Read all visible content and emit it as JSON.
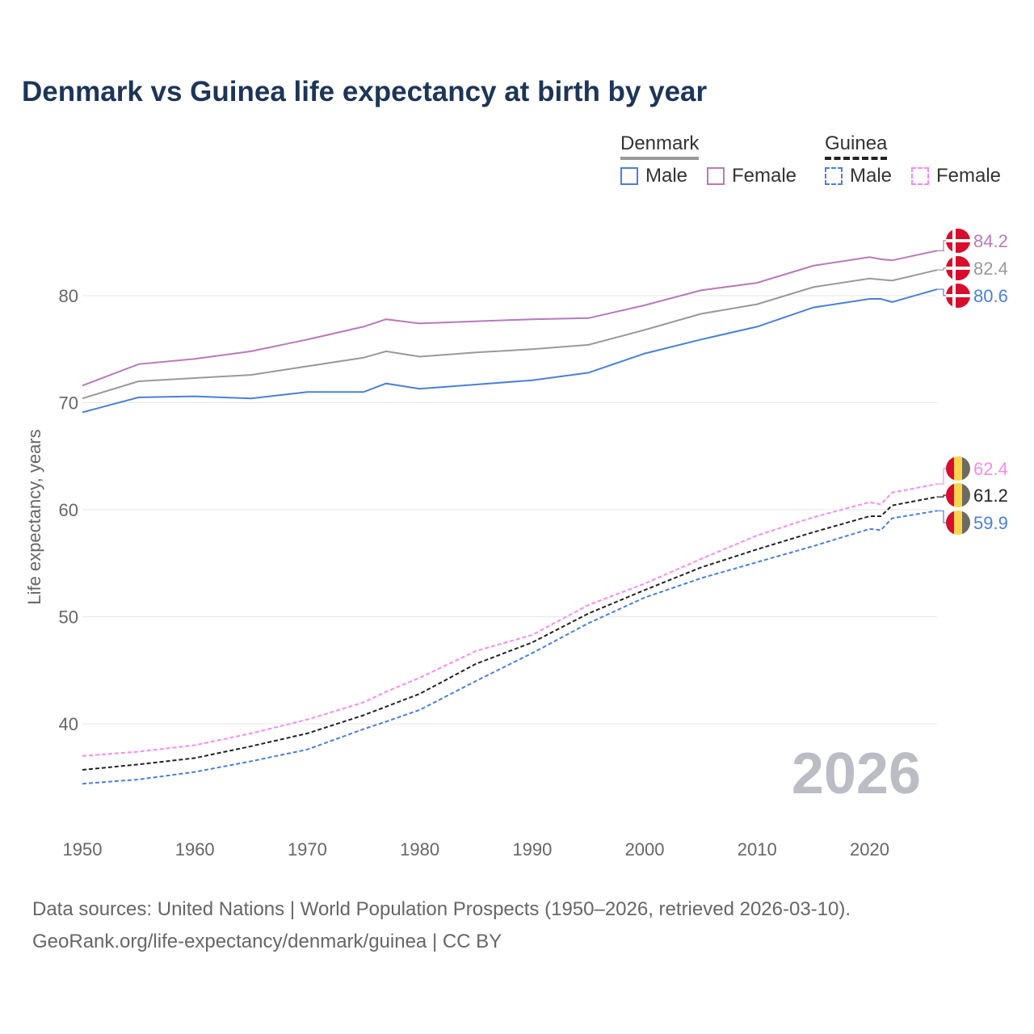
{
  "chart_data": {
    "type": "line",
    "title": "Denmark vs Guinea life expectancy at birth by year",
    "xlabel": "",
    "ylabel": "Life expectancy, years",
    "xlim": [
      1950,
      2026
    ],
    "ylim": [
      31.5,
      87
    ],
    "xticks": [
      "1950",
      "1960",
      "1970",
      "1980",
      "1990",
      "2000",
      "2010",
      "2020"
    ],
    "yticks": [
      "40",
      "50",
      "60",
      "70",
      "80"
    ],
    "grid": true,
    "year_watermark": "2026",
    "x": [
      1950,
      1955,
      1960,
      1965,
      1970,
      1975,
      1977,
      1980,
      1985,
      1990,
      1995,
      2000,
      2005,
      2010,
      2015,
      2020,
      2021,
      2022,
      2026
    ],
    "legend": {
      "groups": [
        {
          "name": "Denmark",
          "items": [
            "Male",
            "Female"
          ]
        },
        {
          "name": "Guinea",
          "items": [
            "Male",
            "Female"
          ]
        }
      ],
      "placement": "top-right"
    },
    "series": [
      {
        "name": "Denmark Female",
        "country": "Denmark",
        "color": "#b87ab8",
        "dashed": false,
        "end_label": "84.2",
        "values": [
          71.6,
          73.6,
          74.1,
          74.8,
          75.9,
          77.1,
          77.8,
          77.4,
          77.6,
          77.8,
          77.9,
          79.1,
          80.5,
          81.2,
          82.8,
          83.6,
          83.4,
          83.3,
          84.2
        ]
      },
      {
        "name": "Denmark Total",
        "country": "Denmark",
        "color": "#999999",
        "dashed": false,
        "end_label": "82.4",
        "values": [
          70.4,
          72.0,
          72.3,
          72.6,
          73.4,
          74.2,
          74.8,
          74.3,
          74.7,
          75.0,
          75.4,
          76.8,
          78.3,
          79.2,
          80.8,
          81.6,
          81.5,
          81.4,
          82.4
        ]
      },
      {
        "name": "Denmark Male",
        "country": "Denmark",
        "color": "#4a7fdc",
        "dashed": false,
        "end_label": "80.6",
        "values": [
          69.1,
          70.5,
          70.6,
          70.4,
          71.0,
          71.0,
          71.8,
          71.3,
          71.7,
          72.1,
          72.8,
          74.6,
          75.9,
          77.1,
          78.9,
          79.7,
          79.7,
          79.4,
          80.6
        ]
      },
      {
        "name": "Guinea Female",
        "country": "Guinea",
        "color": "#f28cf0",
        "dashed": true,
        "end_label": "62.4",
        "values": [
          37.0,
          37.4,
          38.0,
          39.1,
          40.4,
          42.0,
          43.0,
          44.3,
          46.8,
          48.3,
          51.1,
          53.1,
          55.4,
          57.6,
          59.3,
          60.7,
          60.5,
          61.6,
          62.4
        ]
      },
      {
        "name": "Guinea Total",
        "country": "Guinea",
        "color": "#222222",
        "dashed": true,
        "end_label": "61.2",
        "values": [
          35.7,
          36.2,
          36.8,
          37.9,
          39.1,
          40.8,
          41.6,
          42.8,
          45.6,
          47.6,
          50.3,
          52.5,
          54.6,
          56.3,
          57.9,
          59.4,
          59.4,
          60.4,
          61.2
        ]
      },
      {
        "name": "Guinea Male",
        "country": "Guinea",
        "color": "#4a7fdc",
        "dashed": true,
        "end_label": "59.9",
        "values": [
          34.4,
          34.8,
          35.5,
          36.5,
          37.6,
          39.5,
          40.2,
          41.3,
          44.0,
          46.6,
          49.4,
          51.8,
          53.6,
          55.1,
          56.6,
          58.2,
          58.1,
          59.2,
          59.9
        ]
      }
    ]
  },
  "source": {
    "line1": "Data sources: United Nations | World Population Prospects (1950–2026, retrieved 2026-03-10).",
    "line2": "GeoRank.org/life-expectancy/denmark/guinea | CC BY"
  }
}
